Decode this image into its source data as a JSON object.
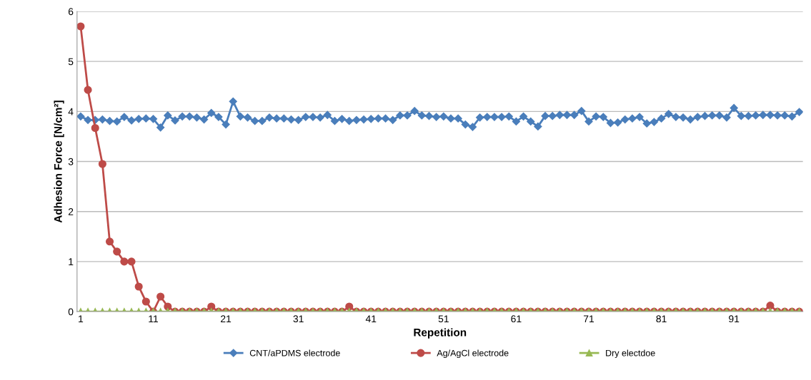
{
  "chart_data": {
    "type": "line",
    "xlabel": "Repetition",
    "ylabel": "Adhesion Force [N/cm²]",
    "categories": [
      "1",
      null,
      null,
      null,
      null,
      null,
      null,
      null,
      null,
      null,
      "11",
      null,
      null,
      null,
      null,
      null,
      null,
      null,
      null,
      null,
      "21",
      null,
      null,
      null,
      null,
      null,
      null,
      null,
      null,
      null,
      "31",
      null,
      null,
      null,
      null,
      null,
      null,
      null,
      null,
      null,
      "41",
      null,
      null,
      null,
      null,
      null,
      null,
      null,
      null,
      null,
      "51",
      null,
      null,
      null,
      null,
      null,
      null,
      null,
      null,
      null,
      "61",
      null,
      null,
      null,
      null,
      null,
      null,
      null,
      null,
      null,
      "71",
      null,
      null,
      null,
      null,
      null,
      null,
      null,
      null,
      null,
      "81",
      null,
      null,
      null,
      null,
      null,
      null,
      null,
      null,
      null,
      "91",
      null,
      null,
      null,
      null,
      null,
      null,
      null,
      null,
      null
    ],
    "ylim": [
      0,
      6
    ],
    "yticks": [
      0,
      1,
      2,
      3,
      4,
      5,
      6
    ],
    "grid": "y",
    "legend": "bottom",
    "line_style": "solid",
    "series": [
      {
        "name": "CNT/aPDMS electrode",
        "color": "#4a7ebb",
        "marker": "diamond",
        "values": [
          3.9,
          3.83,
          3.83,
          3.84,
          3.81,
          3.8,
          3.89,
          3.82,
          3.85,
          3.86,
          3.85,
          3.68,
          3.92,
          3.82,
          3.9,
          3.9,
          3.88,
          3.84,
          3.97,
          3.89,
          3.74,
          4.2,
          3.9,
          3.88,
          3.81,
          3.81,
          3.88,
          3.86,
          3.86,
          3.84,
          3.83,
          3.89,
          3.89,
          3.88,
          3.93,
          3.81,
          3.85,
          3.81,
          3.83,
          3.84,
          3.85,
          3.86,
          3.86,
          3.83,
          3.92,
          3.92,
          4.01,
          3.92,
          3.91,
          3.89,
          3.9,
          3.86,
          3.86,
          3.74,
          3.69,
          3.88,
          3.89,
          3.89,
          3.89,
          3.9,
          3.8,
          3.9,
          3.8,
          3.7,
          3.91,
          3.91,
          3.93,
          3.93,
          3.93,
          4.01,
          3.8,
          3.9,
          3.89,
          3.77,
          3.78,
          3.84,
          3.86,
          3.89,
          3.76,
          3.79,
          3.86,
          3.95,
          3.89,
          3.88,
          3.84,
          3.89,
          3.91,
          3.92,
          3.92,
          3.88,
          4.07,
          3.91,
          3.91,
          3.92,
          3.93,
          3.93,
          3.92,
          3.92,
          3.9,
          3.99
        ]
      },
      {
        "name": "Ag/AgCl electrode",
        "color": "#be4b48",
        "marker": "circle",
        "values": [
          5.7,
          4.43,
          3.67,
          2.95,
          1.4,
          1.2,
          1.0,
          1.0,
          0.5,
          0.2,
          0,
          0.3,
          0.1,
          0,
          0,
          0,
          0,
          0,
          0.1,
          0,
          0,
          0,
          0,
          0,
          0,
          0,
          0,
          0,
          0,
          0,
          0,
          0,
          0,
          0,
          0,
          0,
          0,
          0.1,
          0,
          0,
          0,
          0,
          0,
          0,
          0,
          0,
          0,
          0,
          0,
          0,
          0,
          0,
          0,
          0,
          0,
          0,
          0,
          0,
          0,
          0,
          0,
          0,
          0,
          0,
          0,
          0,
          0,
          0,
          0,
          0,
          0,
          0,
          0,
          0,
          0,
          0,
          0,
          0,
          0,
          0,
          0,
          0,
          0,
          0,
          0,
          0,
          0,
          0,
          0,
          0,
          0,
          0,
          0,
          0,
          0,
          0.12,
          0,
          0,
          0,
          0
        ]
      },
      {
        "name": "Dry electdoe",
        "color": "#98b954",
        "marker": "triangle",
        "values": [
          0,
          0,
          0,
          0,
          0,
          0,
          0,
          0,
          0,
          0,
          0,
          0,
          0,
          0,
          0,
          0,
          0,
          0,
          0,
          0,
          0,
          0,
          0,
          0,
          0,
          0,
          0,
          0,
          0,
          0,
          0,
          0,
          0,
          0,
          0,
          0,
          0,
          0,
          0,
          0,
          0,
          0,
          0,
          0,
          0,
          0,
          0,
          0,
          0,
          0,
          0,
          0,
          0,
          0,
          0,
          0,
          0,
          0,
          0,
          0,
          0,
          0,
          0,
          0,
          0,
          0,
          0,
          0,
          0,
          0,
          0,
          0,
          0,
          0,
          0,
          0,
          0,
          0,
          0,
          0,
          0,
          0,
          0,
          0,
          0,
          0,
          0,
          0,
          0,
          0,
          0,
          0,
          0,
          0,
          0,
          0,
          0,
          0,
          0,
          0
        ]
      }
    ]
  }
}
